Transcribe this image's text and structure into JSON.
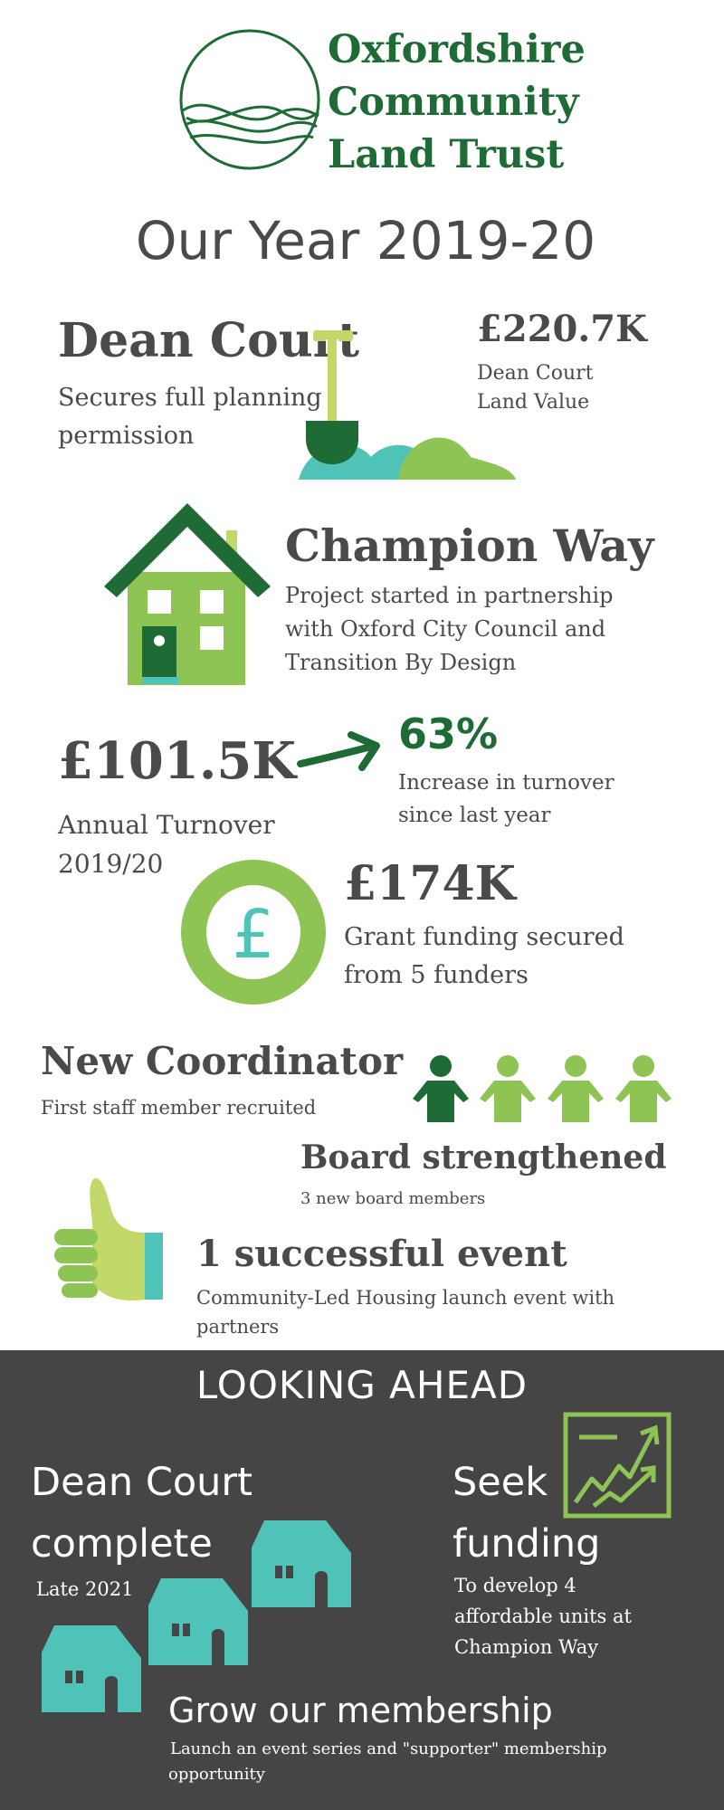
{
  "logo": {
    "line1": "Oxfordshire",
    "line2": "Community",
    "line3": "Land Trust"
  },
  "title": "Our Year 2019-20",
  "dean_court": {
    "heading": "Dean Court",
    "desc_line1": "Secures full planning",
    "desc_line2": "permission"
  },
  "land_value": {
    "amount": "£220.7K",
    "label_line1": "Dean Court",
    "label_line2": "Land Value"
  },
  "champion_way": {
    "heading": "Champion Way",
    "line1": "Project started in partnership",
    "line2": "with Oxford City Council and",
    "line3": "Transition By Design"
  },
  "turnover": {
    "amount": "£101.5K",
    "label_line1": "Annual Turnover",
    "label_line2": "2019/20"
  },
  "increase": {
    "percent": "63%",
    "line1": "Increase in turnover",
    "line2": "since last year"
  },
  "grant": {
    "amount": "£174K",
    "line1": "Grant funding secured",
    "line2": "from 5 funders"
  },
  "coordinator": {
    "heading": "New Coordinator",
    "desc": "First staff member recruited"
  },
  "board": {
    "heading": "Board strengthened",
    "desc": "3 new board members"
  },
  "event": {
    "heading": "1 successful event",
    "line1": "Community-Led Housing launch event with",
    "line2": "partners"
  },
  "ahead": {
    "title": "LOOKING AHEAD",
    "dean": {
      "line1": "Dean Court",
      "line2": "complete",
      "sub": "Late 2021"
    },
    "funding": {
      "line1": "Seek",
      "line2": "funding",
      "sub1": "To develop 4",
      "sub2": "affordable units at",
      "sub3": "Champion Way"
    },
    "membership": {
      "heading": "Grow our membership",
      "sub1": "Launch an event series and \"supporter\" membership",
      "sub2": "opportunity"
    }
  },
  "colors": {
    "dark_green": "#1e6b35",
    "light_green": "#8dc454",
    "teal": "#4fc3b8",
    "dark_panel": "#454545",
    "text": "#4a4a4a"
  },
  "icons": [
    "logo-circle-icon",
    "shovel-icon",
    "house-icon",
    "arrow-icon",
    "pound-coin-icon",
    "person-icon",
    "thumbs-up-icon",
    "growth-chart-icon",
    "small-house-icon"
  ]
}
